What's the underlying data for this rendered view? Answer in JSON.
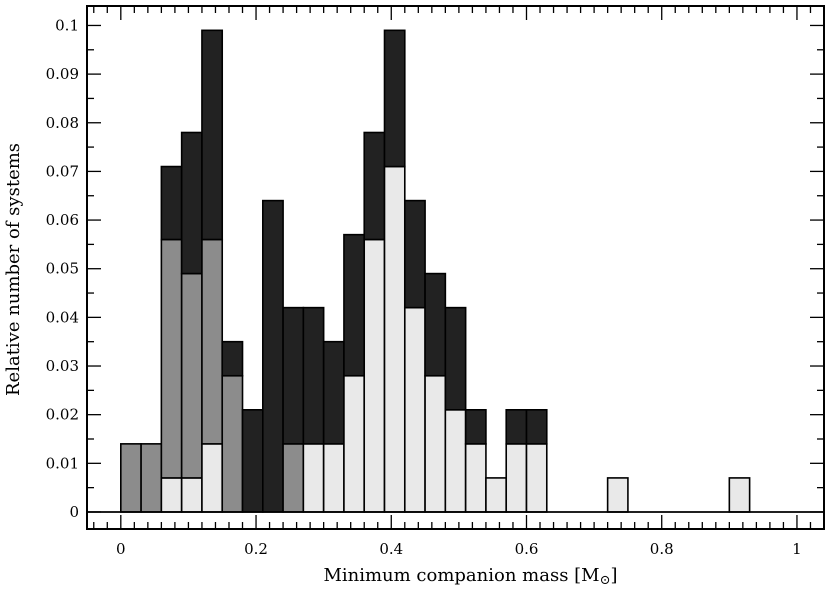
{
  "chart_data": {
    "type": "bar",
    "subtype": "stacked-histogram",
    "xlabel": "Minimum companion mass [M",
    "xlabel_symbol": "⊙",
    "xlabel_suffix": "]",
    "ylabel": "Relative number of systems",
    "xlim": [
      -0.05,
      1.04
    ],
    "ylim": [
      -0.0035,
      0.104
    ],
    "xticks": [
      0,
      0.2,
      0.4,
      0.6,
      0.8,
      1
    ],
    "xtick_labels": [
      "0",
      "0.2",
      "0.4",
      "0.6",
      "0.8",
      "1"
    ],
    "yticks": [
      0,
      0.01,
      0.02,
      0.03,
      0.04,
      0.05,
      0.06,
      0.07,
      0.08,
      0.09,
      0.1
    ],
    "ytick_labels": [
      "0",
      "0.01",
      "0.02",
      "0.03",
      "0.04",
      "0.05",
      "0.06",
      "0.07",
      "0.08",
      "0.09",
      "0.1"
    ],
    "grid": false,
    "legend": "none",
    "bin_width": 0.03,
    "bin_starts": [
      0,
      0.03,
      0.06,
      0.09,
      0.12,
      0.15,
      0.18,
      0.21,
      0.24,
      0.27,
      0.3,
      0.33,
      0.36,
      0.39,
      0.42,
      0.45,
      0.48,
      0.51,
      0.54,
      0.57,
      0.6,
      0.72,
      0.9
    ],
    "series": [
      {
        "color": "#e9e9e9",
        "values": [
          0,
          0,
          0.007,
          0.007,
          0.014,
          0,
          0,
          0,
          0,
          0.014,
          0.014,
          0.028,
          0.056,
          0.071,
          0.042,
          0.028,
          0.021,
          0.014,
          0.007,
          0.014,
          0.014,
          0.007,
          0.007
        ]
      },
      {
        "color": "#8c8c8c",
        "values": [
          0.014,
          0.014,
          0.049,
          0.042,
          0.042,
          0.028,
          0,
          0,
          0.014,
          0,
          0,
          0,
          0,
          0,
          0,
          0,
          0,
          0,
          0,
          0,
          0,
          0,
          0
        ]
      },
      {
        "color": "#222222",
        "values": [
          0,
          0,
          0.015,
          0.029,
          0.043,
          0.007,
          0.021,
          0.064,
          0.028,
          0.028,
          0.021,
          0.029,
          0.022,
          0.028,
          0.022,
          0.021,
          0.021,
          0.007,
          0,
          0.007,
          0.007,
          0,
          0
        ]
      }
    ]
  }
}
